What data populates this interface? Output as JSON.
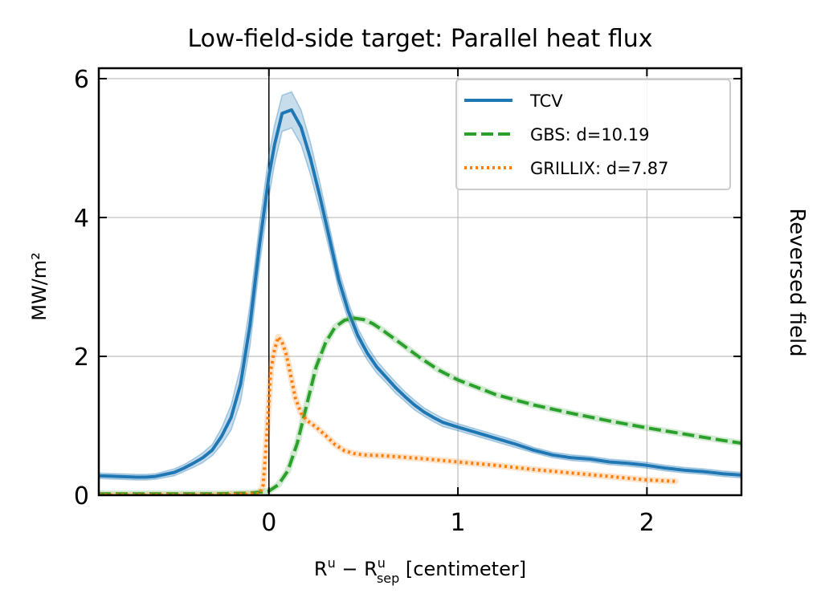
{
  "chart_data": {
    "type": "line",
    "title": "Low-field-side target: Parallel heat flux",
    "xlabel_base": "R",
    "xlabel_sup1": "u",
    "xlabel_minus": " − ",
    "xlabel_sup2": "u",
    "xlabel_sub2": "sep",
    "xlabel_units": " [centimeter]",
    "ylabel": "MW/m²",
    "side_label": "Reversed field",
    "xlim": [
      -0.9,
      2.5
    ],
    "ylim": [
      0,
      6.15
    ],
    "x_ticks": [
      0,
      1,
      2
    ],
    "x_tick_labels": [
      "0",
      "1",
      "2"
    ],
    "y_ticks": [
      0,
      2,
      4,
      6
    ],
    "y_tick_labels": [
      "0",
      "2",
      "4",
      "6"
    ],
    "grid": true,
    "vertical_reference_line_x": 0,
    "legend_position": "upper right",
    "series": [
      {
        "name": "TCV",
        "color": "#1f77b4",
        "style": "solid",
        "band": true,
        "x": [
          -0.9,
          -0.8,
          -0.7,
          -0.65,
          -0.6,
          -0.5,
          -0.45,
          -0.4,
          -0.35,
          -0.3,
          -0.25,
          -0.2,
          -0.15,
          -0.1,
          -0.05,
          0.0,
          0.03,
          0.07,
          0.12,
          0.17,
          0.22,
          0.27,
          0.32,
          0.37,
          0.42,
          0.47,
          0.52,
          0.57,
          0.62,
          0.67,
          0.72,
          0.77,
          0.82,
          0.87,
          0.92,
          1.0,
          1.1,
          1.2,
          1.3,
          1.4,
          1.5,
          1.6,
          1.7,
          1.8,
          1.9,
          2.0,
          2.1,
          2.2,
          2.3,
          2.4,
          2.5
        ],
        "y": [
          0.28,
          0.27,
          0.26,
          0.26,
          0.27,
          0.33,
          0.39,
          0.46,
          0.54,
          0.65,
          0.85,
          1.12,
          1.6,
          2.45,
          3.6,
          4.6,
          5.05,
          5.5,
          5.55,
          5.3,
          4.85,
          4.3,
          3.7,
          3.1,
          2.65,
          2.3,
          2.05,
          1.85,
          1.7,
          1.55,
          1.42,
          1.3,
          1.2,
          1.12,
          1.05,
          0.98,
          0.9,
          0.82,
          0.74,
          0.65,
          0.58,
          0.54,
          0.52,
          0.48,
          0.46,
          0.43,
          0.39,
          0.36,
          0.34,
          0.31,
          0.29
        ],
        "band_width": [
          0.04,
          0.04,
          0.04,
          0.04,
          0.04,
          0.05,
          0.05,
          0.06,
          0.07,
          0.08,
          0.12,
          0.18,
          0.25,
          0.3,
          0.3,
          0.3,
          0.28,
          0.26,
          0.26,
          0.25,
          0.23,
          0.2,
          0.17,
          0.15,
          0.13,
          0.11,
          0.1,
          0.09,
          0.08,
          0.08,
          0.07,
          0.07,
          0.06,
          0.06,
          0.06,
          0.05,
          0.05,
          0.05,
          0.05,
          0.04,
          0.04,
          0.04,
          0.04,
          0.04,
          0.04,
          0.04,
          0.04,
          0.04,
          0.04,
          0.04,
          0.04
        ]
      },
      {
        "name": "GBS: d=10.19",
        "color": "#2ca02c",
        "style": "dashed",
        "x": [
          -0.9,
          -0.6,
          -0.3,
          -0.1,
          0.0,
          0.05,
          0.1,
          0.15,
          0.2,
          0.25,
          0.3,
          0.35,
          0.4,
          0.45,
          0.5,
          0.55,
          0.6,
          0.7,
          0.8,
          0.9,
          1.0,
          1.2,
          1.4,
          1.6,
          1.8,
          2.0,
          2.2,
          2.4,
          2.5
        ],
        "y": [
          0.02,
          0.02,
          0.02,
          0.03,
          0.06,
          0.15,
          0.35,
          0.75,
          1.3,
          1.85,
          2.2,
          2.42,
          2.52,
          2.55,
          2.53,
          2.47,
          2.38,
          2.18,
          1.98,
          1.8,
          1.66,
          1.45,
          1.3,
          1.18,
          1.07,
          0.97,
          0.88,
          0.79,
          0.75
        ]
      },
      {
        "name": "GRILLIX: d=7.87",
        "color": "#ff7f0e",
        "style": "dotted",
        "x": [
          -0.9,
          -0.6,
          -0.3,
          -0.05,
          -0.03,
          -0.01,
          0.01,
          0.03,
          0.05,
          0.07,
          0.09,
          0.11,
          0.14,
          0.17,
          0.2,
          0.25,
          0.3,
          0.35,
          0.4,
          0.45,
          0.5,
          0.6,
          0.8,
          1.0,
          1.2,
          1.4,
          1.6,
          1.8,
          2.0,
          2.15
        ],
        "y": [
          0.0,
          0.0,
          0.0,
          0.02,
          0.15,
          0.9,
          1.8,
          2.1,
          2.28,
          2.2,
          2.05,
          1.8,
          1.4,
          1.18,
          1.08,
          0.98,
          0.86,
          0.73,
          0.64,
          0.6,
          0.58,
          0.57,
          0.53,
          0.48,
          0.43,
          0.37,
          0.32,
          0.27,
          0.22,
          0.2
        ]
      }
    ]
  }
}
